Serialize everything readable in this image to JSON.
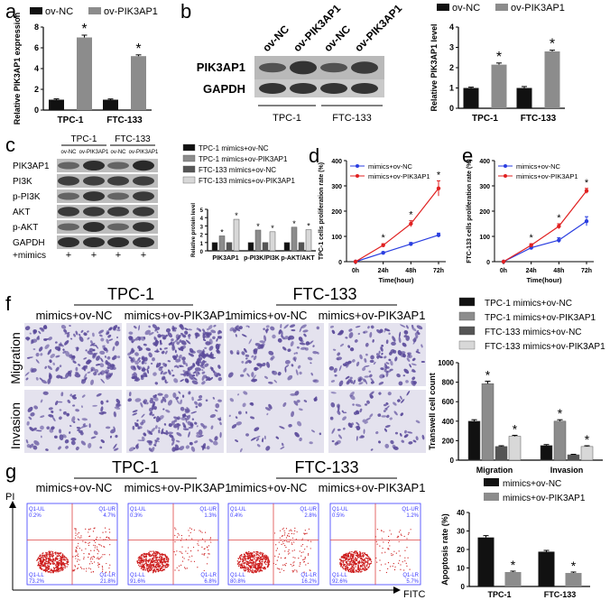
{
  "panels": {
    "a": "a",
    "b": "b",
    "c": "c",
    "d": "d",
    "e": "e",
    "f": "f",
    "g": "g"
  },
  "legend_ov": {
    "nc": "ov-NC",
    "pik": "ov-PIK3AP1"
  },
  "legend_mimics": {
    "nc": "mimics+ov-NC",
    "pik": "mimics+ov-PIK3AP1"
  },
  "legend_four": {
    "s1": "TPC-1 mimics+ov-NC",
    "s2": "TPC-1 mimics+ov-PIK3AP1",
    "s3": "FTC-133 mimics+ov-NC",
    "s4": "FTC-133 mimics+ov-PIK3AP1"
  },
  "blot_b": {
    "lanes": [
      "ov-NC",
      "ov-PIK3AP1",
      "ov-NC",
      "ov-PIK3AP1"
    ],
    "rows": [
      "PIK3AP1",
      "GAPDH"
    ],
    "groups": [
      "TPC-1",
      "FTC-133"
    ]
  },
  "blot_c": {
    "groups": [
      "TPC-1",
      "FTC-133"
    ],
    "lanes": [
      "ov-NC",
      "ov-PIK3AP1",
      "ov-NC",
      "ov-PIK3AP1"
    ],
    "rows": [
      "PIK3AP1",
      "PI3K",
      "p-PI3K",
      "AKT",
      "p-AKT",
      "GAPDH"
    ],
    "mimics_label": "+mimics",
    "plus": "+"
  },
  "panel_f": {
    "groups": [
      "TPC-1",
      "FTC-133"
    ],
    "cols": [
      "mimics+ov-NC",
      "mimics+ov-PIK3AP1",
      "mimics+ov-NC",
      "mimics+ov-PIK3AP1"
    ],
    "rows": [
      "Migration",
      "Invasion"
    ]
  },
  "panel_g": {
    "groups": [
      "TPC-1",
      "FTC-133"
    ],
    "cols": [
      "mimics+ov-NC",
      "mimics+ov-PIK3AP1",
      "mimics+ov-NC",
      "mimics+ov-PIK3AP1"
    ],
    "ylabel": "PI",
    "xlabel": "FITC",
    "quad_labels": [
      "Q1-UL",
      "Q1-UR",
      "Q1-LL",
      "Q1-LR"
    ],
    "quad_values": [
      [
        "0.2%",
        "4.7%",
        "73.2%",
        "21.8%"
      ],
      [
        "0.3%",
        "1.3%",
        "91.6%",
        "6.8%"
      ],
      [
        "0.4%",
        "2.8%",
        "80.8%",
        "16.2%"
      ],
      [
        "0.5%",
        "1.2%",
        "92.6%",
        "5.7%"
      ]
    ]
  },
  "star": "*",
  "colors": {
    "black": "#111111",
    "grey": "#8c8c8c",
    "dark_grey": "#555555",
    "light_grey": "#d8d8d8",
    "blue": "#2a3ee0",
    "red": "#e02020",
    "flow_red": "#cc1a1a",
    "cell_stain": "#5a4a9a"
  },
  "chart_data": [
    {
      "id": "a",
      "type": "bar",
      "categories": [
        "TPC-1",
        "FTC-133"
      ],
      "series": [
        {
          "name": "ov-NC",
          "values": [
            1.0,
            1.0
          ],
          "errors": [
            0.08,
            0.07
          ]
        },
        {
          "name": "ov-PIK3AP1",
          "values": [
            7.0,
            5.2
          ],
          "errors": [
            0.22,
            0.12
          ]
        }
      ],
      "ylabel": "Relative PIK3AP1 expression",
      "yticks": [
        0,
        2,
        4,
        6,
        8
      ],
      "ylim": [
        0,
        8
      ],
      "significance": [
        false,
        true,
        false,
        true
      ]
    },
    {
      "id": "b",
      "type": "bar",
      "categories": [
        "TPC-1",
        "FTC-133"
      ],
      "series": [
        {
          "name": "ov-NC",
          "values": [
            1.0,
            1.0
          ],
          "errors": [
            0.04,
            0.07
          ]
        },
        {
          "name": "ov-PIK3AP1",
          "values": [
            2.15,
            2.8
          ],
          "errors": [
            0.08,
            0.06
          ]
        }
      ],
      "ylabel": "Relative PIK3AP1 level",
      "yticks": [
        0,
        1,
        2,
        3,
        4
      ],
      "ylim": [
        0,
        4
      ],
      "significance": [
        false,
        true,
        false,
        true
      ]
    },
    {
      "id": "c",
      "type": "bar",
      "categories": [
        "PIK3AP1",
        "p-PI3K/PI3K",
        "p-AKT/AKT"
      ],
      "series": [
        {
          "name": "TPC-1 mimics+ov-NC",
          "values": [
            1.0,
            1.0,
            1.0
          ]
        },
        {
          "name": "TPC-1 mimics+ov-PIK3AP1",
          "values": [
            1.8,
            2.5,
            2.85
          ]
        },
        {
          "name": "FTC-133 mimics+ov-NC",
          "values": [
            1.0,
            1.0,
            1.0
          ]
        },
        {
          "name": "FTC-133 mimics+ov-PIK3AP1",
          "values": [
            3.8,
            2.3,
            2.55
          ]
        }
      ],
      "ylabel": "Relative protein level",
      "yticks": [
        0,
        1,
        2,
        3,
        4,
        5
      ],
      "ylim": [
        0,
        5
      ]
    },
    {
      "id": "d",
      "type": "line",
      "x": [
        "0h",
        "24h",
        "48h",
        "72h"
      ],
      "series": [
        {
          "name": "mimics+ov-NC",
          "values": [
            0,
            35,
            70,
            105
          ],
          "errors": [
            0,
            4,
            6,
            8
          ]
        },
        {
          "name": "mimics+ov-PIK3AP1",
          "values": [
            0,
            65,
            150,
            290
          ],
          "errors": [
            0,
            6,
            12,
            30
          ]
        }
      ],
      "xlabel": "Time(hour)",
      "ylabel": "TPC-1 cells proliferation rate (%)",
      "yticks": [
        0,
        100,
        200,
        300,
        400
      ],
      "ylim": [
        0,
        400
      ]
    },
    {
      "id": "e",
      "type": "line",
      "x": [
        "0h",
        "24h",
        "48h",
        "72h"
      ],
      "series": [
        {
          "name": "mimics+ov-NC",
          "values": [
            0,
            55,
            85,
            160
          ],
          "errors": [
            0,
            6,
            10,
            18
          ]
        },
        {
          "name": "mimics+ov-PIK3AP1",
          "values": [
            0,
            65,
            140,
            280
          ],
          "errors": [
            0,
            6,
            10,
            10
          ]
        }
      ],
      "xlabel": "Time(hour)",
      "ylabel": "FTC-133 cells proliferation rate (%)",
      "yticks": [
        0,
        100,
        200,
        300,
        400
      ],
      "ylim": [
        0,
        400
      ]
    },
    {
      "id": "f",
      "type": "bar",
      "categories": [
        "Migration",
        "Invasion"
      ],
      "series": [
        {
          "name": "TPC-1 mimics+ov-NC",
          "values": [
            400,
            150
          ],
          "errors": [
            15,
            10
          ]
        },
        {
          "name": "TPC-1 mimics+ov-PIK3AP1",
          "values": [
            785,
            400
          ],
          "errors": [
            25,
            15
          ]
        },
        {
          "name": "FTC-133 mimics+ov-NC",
          "values": [
            140,
            55
          ],
          "errors": [
            8,
            5
          ]
        },
        {
          "name": "FTC-133 mimics+ov-PIK3AP1",
          "values": [
            245,
            140
          ],
          "errors": [
            10,
            8
          ]
        }
      ],
      "ylabel": "Transwell cell count",
      "yticks": [
        0,
        200,
        400,
        600,
        800,
        1000
      ],
      "ylim": [
        0,
        1000
      ]
    },
    {
      "id": "g",
      "type": "bar",
      "categories": [
        "TPC-1",
        "FTC-133"
      ],
      "series": [
        {
          "name": "mimics+ov-NC",
          "values": [
            26.5,
            18.8
          ],
          "errors": [
            1.0,
            0.7
          ]
        },
        {
          "name": "mimics+ov-PIK3AP1",
          "values": [
            7.8,
            7.3
          ],
          "errors": [
            0.5,
            0.5
          ]
        }
      ],
      "ylabel": "Apoptosis rate (%)",
      "yticks": [
        0,
        10,
        20,
        30,
        40
      ],
      "ylim": [
        0,
        40
      ]
    }
  ]
}
